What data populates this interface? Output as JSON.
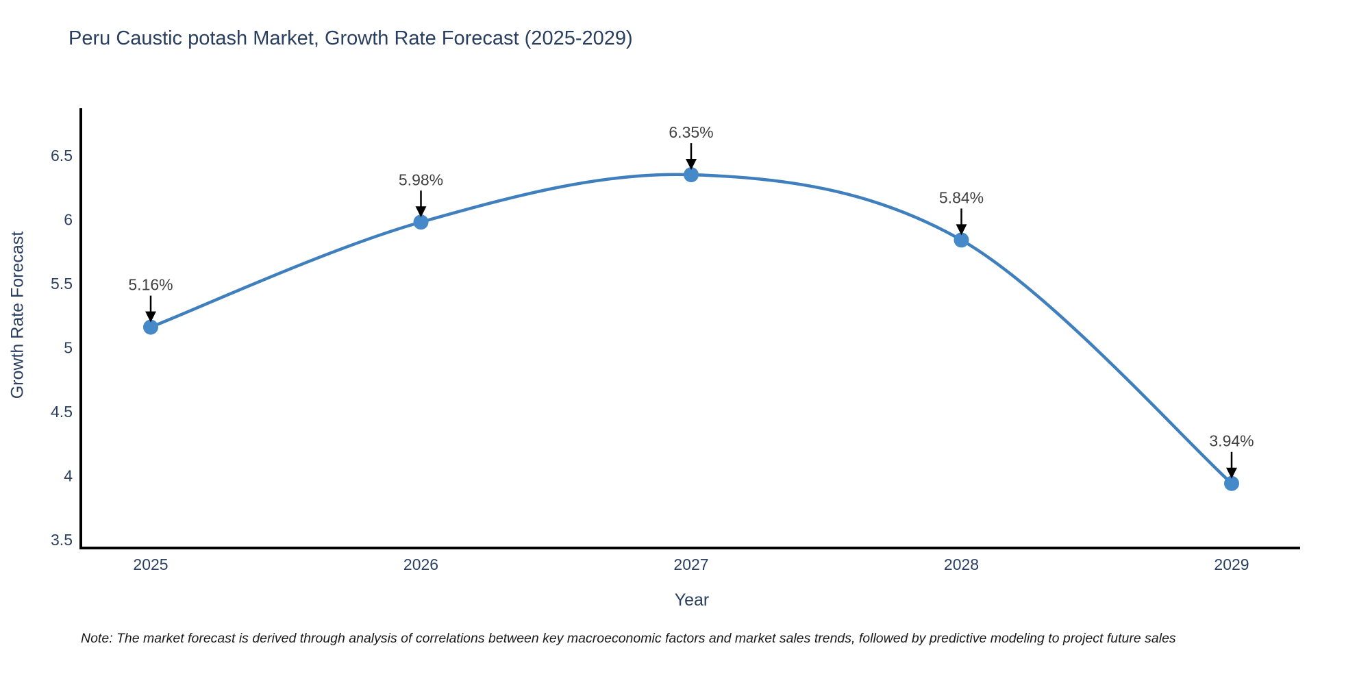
{
  "chart_data": {
    "type": "line",
    "title": "Peru Caustic potash Market, Growth Rate Forecast (2025-2029)",
    "xlabel": "Year",
    "ylabel": "Growth Rate Forecast",
    "categories": [
      "2025",
      "2026",
      "2027",
      "2028",
      "2029"
    ],
    "series": [
      {
        "name": "Growth Rate Forecast",
        "values": [
          5.16,
          5.98,
          6.35,
          5.84,
          3.94
        ],
        "point_labels": [
          "5.16%",
          "5.98%",
          "6.35%",
          "5.84%",
          "3.94%"
        ]
      }
    ],
    "yticks": [
      "3.5",
      "4",
      "4.5",
      "5",
      "5.5",
      "6",
      "6.5"
    ],
    "ytick_values": [
      3.5,
      4,
      4.5,
      5,
      5.5,
      6,
      6.5
    ],
    "ylim": [
      3.436,
      6.869
    ],
    "grid": false,
    "legend_position": "none",
    "line_color": "#3f7fbd",
    "marker_color": "#4589c8",
    "axis_color": "#000000",
    "tick_color": "#2a3f5f",
    "annotation_text_color": "#404040",
    "annotation_arrow_color": "#000000",
    "note": "Note: The market forecast is derived through analysis of correlations between key macroeconomic factors and market sales trends, followed by predictive modeling to project future sales"
  }
}
